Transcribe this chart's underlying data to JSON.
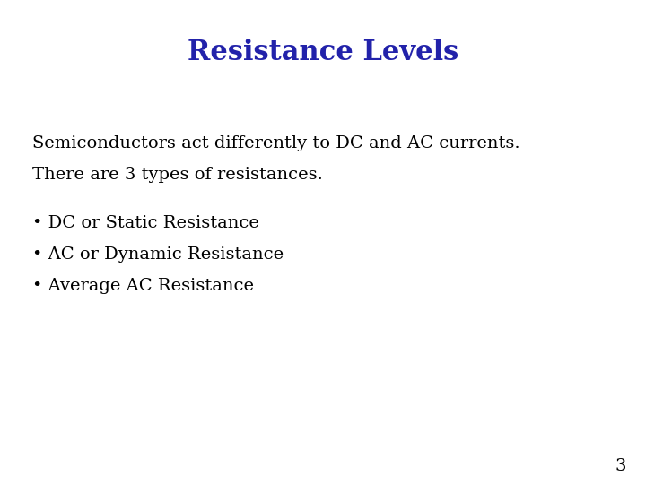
{
  "title": "Resistance Levels",
  "title_color": "#2222aa",
  "title_fontsize": 22,
  "title_fontstyle": "normal",
  "title_fontweight": "bold",
  "body_text_line1": "Semiconductors act differently to DC and AC currents.",
  "body_text_line2": "There are 3 types of resistances.",
  "body_fontsize": 14,
  "body_color": "#000000",
  "bullet_items": [
    "DC or Static Resistance",
    "AC or Dynamic Resistance",
    "Average AC Resistance"
  ],
  "bullet_fontsize": 14,
  "bullet_color": "#000000",
  "page_number": "3",
  "page_number_fontsize": 14,
  "background_color": "#ffffff",
  "fig_width": 7.2,
  "fig_height": 5.4,
  "dpi": 100
}
